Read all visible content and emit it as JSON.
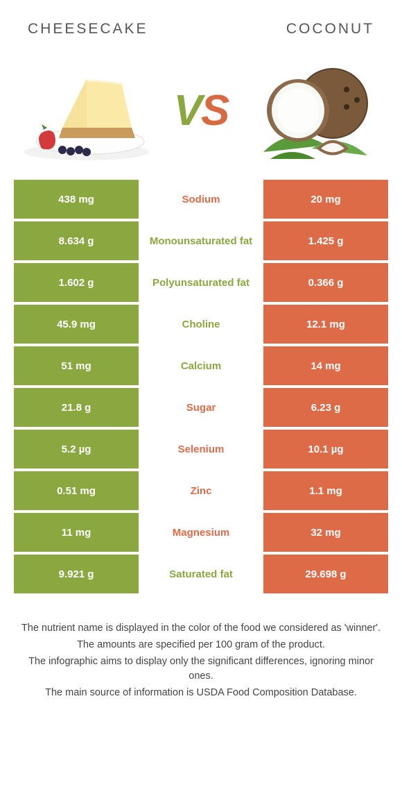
{
  "header": {
    "left_title": "CHEESECAKE",
    "right_title": "COCONUT"
  },
  "vs": {
    "v": "V",
    "s": "S"
  },
  "colors": {
    "green": "#8aa83f",
    "orange": "#dd6b48",
    "bg": "#ffffff",
    "text": "#333333"
  },
  "table": {
    "rows": [
      {
        "left": "438 mg",
        "nutrient": "Sodium",
        "right": "20 mg",
        "winner": "orange"
      },
      {
        "left": "8.634 g",
        "nutrient": "Monounsaturated fat",
        "right": "1.425 g",
        "winner": "green"
      },
      {
        "left": "1.602 g",
        "nutrient": "Polyunsaturated fat",
        "right": "0.366 g",
        "winner": "green"
      },
      {
        "left": "45.9 mg",
        "nutrient": "Choline",
        "right": "12.1 mg",
        "winner": "green"
      },
      {
        "left": "51 mg",
        "nutrient": "Calcium",
        "right": "14 mg",
        "winner": "green"
      },
      {
        "left": "21.8 g",
        "nutrient": "Sugar",
        "right": "6.23 g",
        "winner": "orange"
      },
      {
        "left": "5.2 µg",
        "nutrient": "Selenium",
        "right": "10.1 µg",
        "winner": "orange"
      },
      {
        "left": "0.51 mg",
        "nutrient": "Zinc",
        "right": "1.1 mg",
        "winner": "orange"
      },
      {
        "left": "11 mg",
        "nutrient": "Magnesium",
        "right": "32 mg",
        "winner": "orange"
      },
      {
        "left": "9.921 g",
        "nutrient": "Saturated fat",
        "right": "29.698 g",
        "winner": "green"
      }
    ]
  },
  "footer": {
    "line1": "The nutrient name is displayed in the color of the food we considered as 'winner'.",
    "line2": "The amounts are specified per 100 gram of the product.",
    "line3": "The infographic aims to display only the significant differences, ignoring minor ones.",
    "line4": "The main source of information is USDA Food Composition Database."
  }
}
